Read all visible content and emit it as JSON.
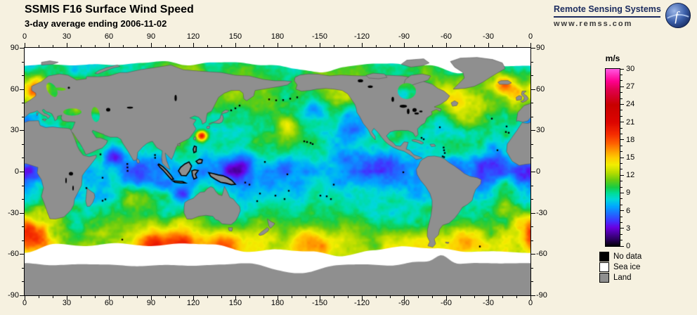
{
  "header": {
    "title": "SSMIS F16 Surface Wind Speed",
    "subtitle": "3-day average ending 2006-11-02"
  },
  "brand": {
    "name": "Remote Sensing Systems",
    "url": "www.remss.com"
  },
  "map": {
    "lon_tick_positions": [
      0,
      30,
      60,
      90,
      120,
      150,
      180,
      210,
      240,
      270,
      300,
      330,
      360
    ],
    "lon_tick_labels": [
      "0",
      "30",
      "60",
      "90",
      "120",
      "150",
      "180",
      "-150",
      "-120",
      "-90",
      "-60",
      "-30",
      "0"
    ],
    "lat_tick_positions": [
      90,
      60,
      30,
      0,
      -30,
      -60,
      -90
    ],
    "lat_tick_labels": [
      "90",
      "60",
      "30",
      "0",
      "-30",
      "-60",
      "-90"
    ]
  },
  "colorbar": {
    "unit": "m/s",
    "min": 0,
    "max": 30,
    "tick_values": [
      30,
      27,
      24,
      21,
      18,
      15,
      12,
      9,
      6,
      3,
      0
    ],
    "palette": [
      {
        "v": 0,
        "c": "#000000"
      },
      {
        "v": 1,
        "c": "#250050"
      },
      {
        "v": 2.2,
        "c": "#4b00a0"
      },
      {
        "v": 3.2,
        "c": "#6a00e0"
      },
      {
        "v": 4.3,
        "c": "#4133ff"
      },
      {
        "v": 5.5,
        "c": "#1f6bff"
      },
      {
        "v": 6.8,
        "c": "#00a8ff"
      },
      {
        "v": 8,
        "c": "#00d8d8"
      },
      {
        "v": 9,
        "c": "#00dd99"
      },
      {
        "v": 10,
        "c": "#17cc44"
      },
      {
        "v": 11.2,
        "c": "#66cc11"
      },
      {
        "v": 12.5,
        "c": "#b8dd00"
      },
      {
        "v": 13.8,
        "c": "#f2ee00"
      },
      {
        "v": 15,
        "c": "#ffcc00"
      },
      {
        "v": 16.2,
        "c": "#ff9900"
      },
      {
        "v": 17.5,
        "c": "#ff5e00"
      },
      {
        "v": 19,
        "c": "#f52c00"
      },
      {
        "v": 21,
        "c": "#dd0500"
      },
      {
        "v": 24,
        "c": "#c80000"
      },
      {
        "v": 26.5,
        "c": "#e0004c"
      },
      {
        "v": 28,
        "c": "#ff0090"
      },
      {
        "v": 30,
        "c": "#ff55e0"
      }
    ]
  },
  "legend": {
    "items": [
      {
        "label": "No data",
        "color": "#000000"
      },
      {
        "label": "Sea ice",
        "color": "#ffffff"
      },
      {
        "label": "Land",
        "color": "#8f8f8f"
      }
    ]
  },
  "colors": {
    "background": "#f6f1e0",
    "land": "#8f8f8f",
    "sea_ice": "#ffffff",
    "no_data": "#000000",
    "map_border": "#000000"
  },
  "chart_data": {
    "type": "heatmap",
    "title": "SSMIS F16 Surface Wind Speed",
    "subtitle": "3-day average ending 2006-11-02",
    "units": "m/s",
    "projection": "equirectangular",
    "lon_range": [
      0,
      360
    ],
    "lat_range": [
      -90,
      90
    ],
    "lon_ticks": [
      0,
      30,
      60,
      90,
      120,
      150,
      180,
      -150,
      -120,
      -90,
      -60,
      -30,
      0
    ],
    "lat_ticks": [
      90,
      60,
      30,
      0,
      -30,
      -60,
      -90
    ],
    "value_range": [
      0,
      30
    ],
    "colorbar_ticks": [
      0,
      3,
      6,
      9,
      12,
      15,
      18,
      21,
      24,
      27,
      30
    ],
    "legend": [
      "No data",
      "Sea ice",
      "Land"
    ]
  }
}
